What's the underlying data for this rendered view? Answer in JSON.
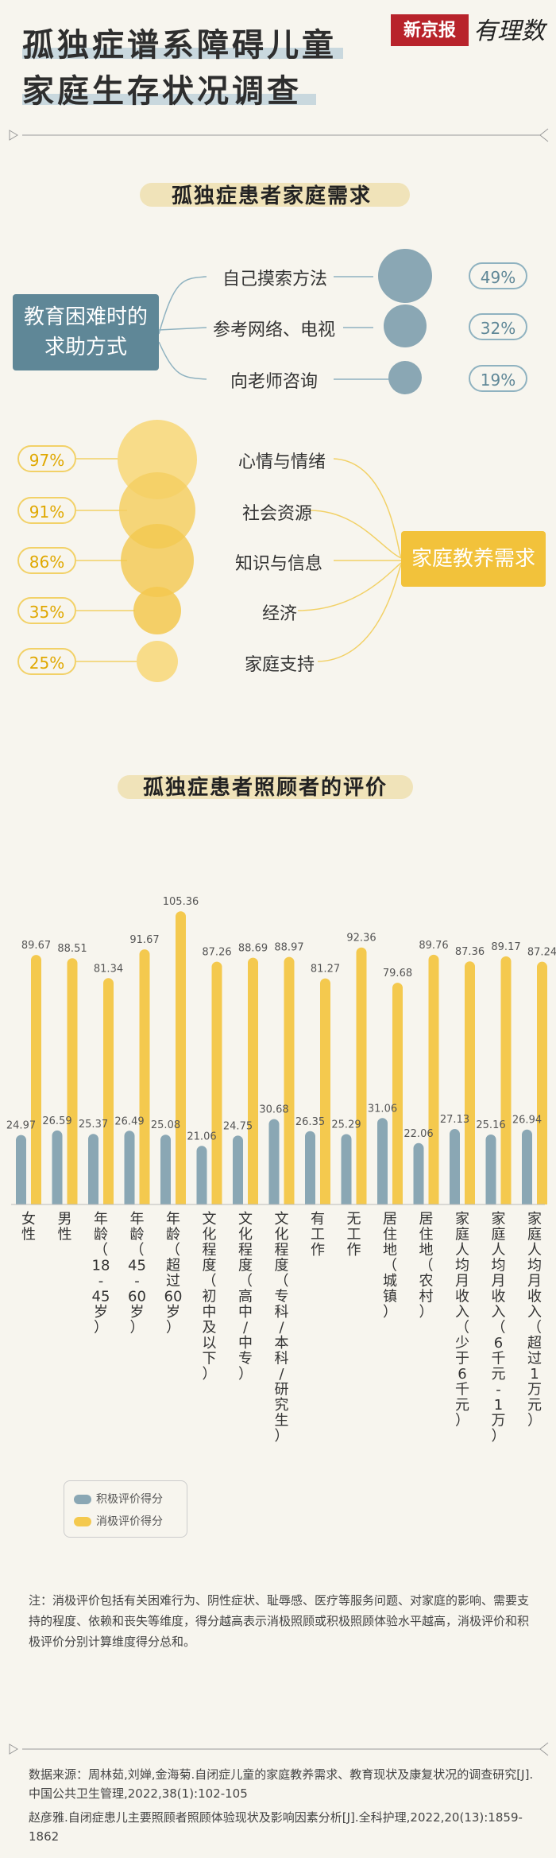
{
  "header": {
    "title_line1": "孤独症谱系障碍儿童",
    "title_line2": "家庭生存状况调查",
    "brand": "新京报",
    "brand_sub": "有理数"
  },
  "section1": {
    "title": "孤独症患者家庭需求",
    "help_label_line1": "教育困难时的",
    "help_label_line2": "求助方式",
    "help_items": [
      {
        "label": "自己摸索方法",
        "percent": "49%",
        "value": 49
      },
      {
        "label": "参考网络、电视",
        "percent": "32%",
        "value": 32
      },
      {
        "label": "向老师咨询",
        "percent": "19%",
        "value": 19
      }
    ],
    "needs_label": "家庭教养需求",
    "needs_items": [
      {
        "label": "心情与情绪",
        "percent": "97%",
        "value": 97
      },
      {
        "label": "社会资源",
        "percent": "91%",
        "value": 91
      },
      {
        "label": "知识与信息",
        "percent": "86%",
        "value": 86
      },
      {
        "label": "经济",
        "percent": "35%",
        "value": 35
      },
      {
        "label": "家庭支持",
        "percent": "25%",
        "value": 25
      }
    ]
  },
  "section2": {
    "title": "孤独症患者照顾者的评价",
    "legend_positive": "积极评价得分",
    "legend_negative": "消极评价得分"
  },
  "chart_data": {
    "type": "bar",
    "categories": [
      "女性",
      "男性",
      "年龄（18-45岁）",
      "年龄（45-60岁）",
      "年龄（超过60岁）",
      "文化程度（初中及以下）",
      "文化程度（高中/中专）",
      "文化程度（专科/本科/研究生）",
      "有工作",
      "无工作",
      "居住地（城镇）",
      "居住地（农村）",
      "家庭人均月收入（少于6千元）",
      "家庭人均月收入（6千元-1万）",
      "家庭人均月收入（超过1万元）"
    ],
    "axis_labels": [
      "女\n性",
      "男\n性",
      "年\n龄\n（\n18\n-\n45\n岁\n）",
      "年\n龄\n（\n45\n-\n60\n岁\n）",
      "年\n龄\n（\n超\n过\n60\n岁\n）",
      "文\n化\n程\n度\n（\n初\n中\n及\n以\n下\n）",
      "文\n化\n程\n度\n（\n高\n中\n/\n中\n专\n）",
      "文\n化\n程\n度\n（\n专\n科\n/\n本\n科\n/\n研\n究\n生\n）",
      "有\n工\n作",
      "无\n工\n作",
      "居\n住\n地\n（\n城\n镇\n）",
      "居\n住\n地\n（\n农\n村\n）",
      "家\n庭\n人\n均\n月\n收\n入\n（\n少\n于\n6\n千\n元\n）",
      "家\n庭\n人\n均\n月\n收\n入\n（\n6\n千\n元\n-\n1\n万\n）",
      "家\n庭\n人\n均\n月\n收\n入\n（\n超\n过\n1\n万\n元\n）"
    ],
    "series": [
      {
        "name": "积极评价得分",
        "color": "#8aa7b4",
        "values": [
          24.97,
          26.59,
          25.37,
          26.49,
          25.08,
          21.06,
          24.75,
          30.68,
          26.35,
          25.29,
          31.06,
          22.06,
          27.13,
          25.16,
          26.94
        ]
      },
      {
        "name": "消极评价得分",
        "color": "#f4c94e",
        "values": [
          89.67,
          88.51,
          81.34,
          91.67,
          105.36,
          87.26,
          88.69,
          88.97,
          81.27,
          92.36,
          79.68,
          89.76,
          87.36,
          89.17,
          87.24
        ]
      }
    ]
  },
  "footer": {
    "note": "注：消极评价包括有关困难行为、阴性症状、耻辱感、医疗等服务问题、对家庭的影响、需要支持的程度、依赖和丧失等维度，得分越高表示消极照顾或积极照顾体验水平越高，消极评价和积极评价分别计算维度得分总和。",
    "source_line1": "数据来源：周林茹,刘婵,金海菊.自闭症儿童的家庭教养需求、教育现状及康复状况的调查研究[J].中国公共卫生管理,2022,38(1):102-105",
    "source_line2": "赵彦雅.自闭症患儿主要照顾者照顾体验现状及影响因素分析[J].全科护理,2022,20(13):1859-1862"
  }
}
